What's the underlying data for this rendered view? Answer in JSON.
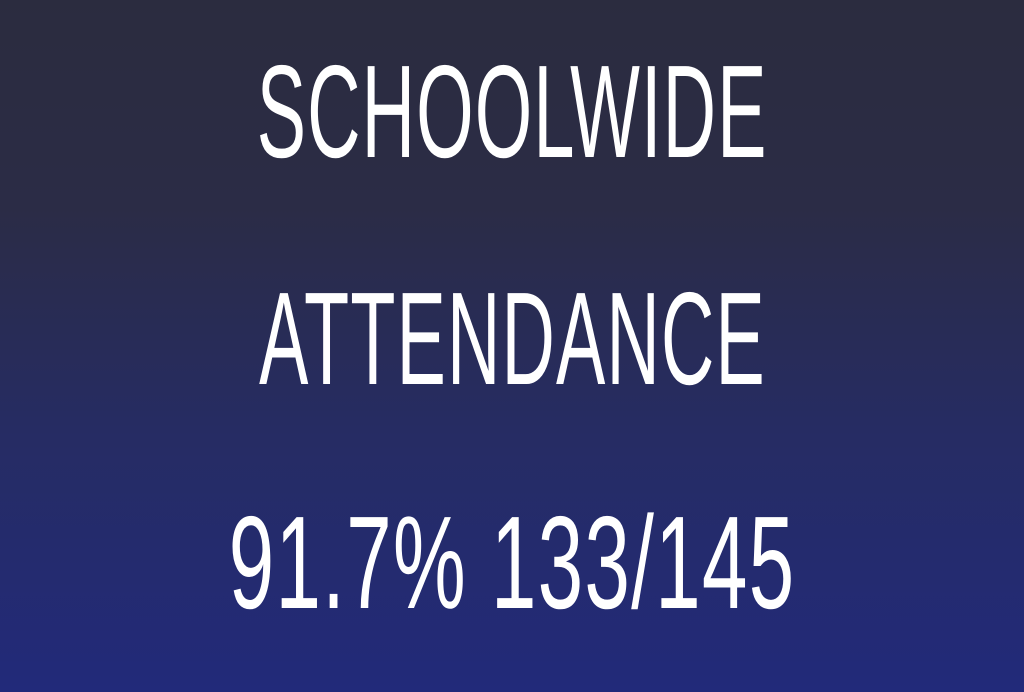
{
  "poster": {
    "line1": "SCHOOLWIDE",
    "line2": "ATTENDANCE",
    "line3": "91.7% 133/145",
    "colors": {
      "text": "#ffffff",
      "background_top": "#2b2c3f",
      "background_bottom": "#222a7a"
    }
  }
}
